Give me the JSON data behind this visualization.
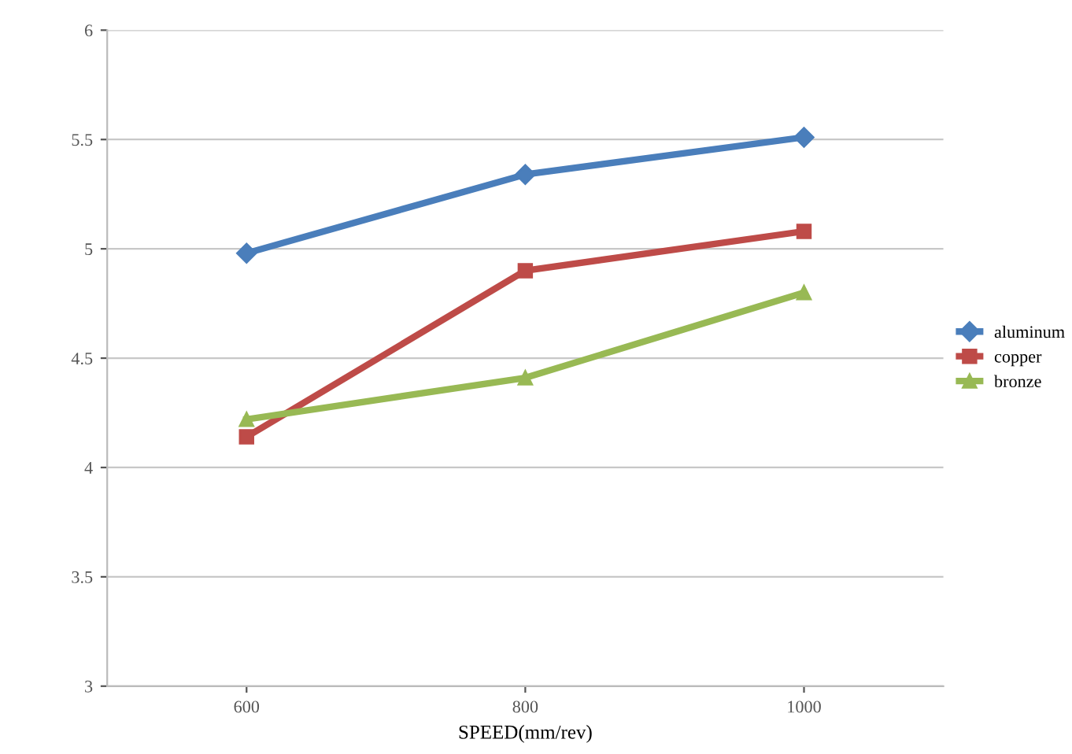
{
  "chart_data": {
    "type": "line",
    "xlabel": "SPEED(mm/rev)",
    "categories": [
      "600",
      "800",
      "1000"
    ],
    "series": [
      {
        "name": "aluminum",
        "color": "#4a7ebb",
        "marker": "diamond",
        "values": [
          4.98,
          5.34,
          5.51
        ]
      },
      {
        "name": "copper",
        "color": "#be4b48",
        "marker": "square",
        "values": [
          4.14,
          4.9,
          5.08
        ]
      },
      {
        "name": "bronze",
        "color": "#98b954",
        "marker": "triangle",
        "values": [
          4.22,
          4.41,
          4.8
        ]
      }
    ],
    "ylim": [
      3,
      6
    ],
    "yticks": [
      3,
      3.5,
      4,
      4.5,
      5,
      5.5,
      6
    ],
    "grid": "y",
    "legend": "right"
  }
}
